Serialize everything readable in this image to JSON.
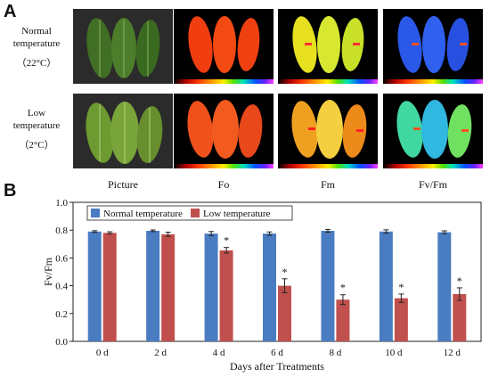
{
  "panel_a": {
    "letter": "A",
    "rows": [
      {
        "label_lines": [
          "Normal",
          "temperature",
          "（22°C）"
        ]
      },
      {
        "label_lines": [
          "Low",
          "temperature",
          "（2°C）"
        ]
      }
    ],
    "columns": [
      "Picture",
      "Fo",
      "Fm",
      "Fv/Fm"
    ]
  },
  "panel_b": {
    "letter": "B"
  },
  "colors": {
    "normal": "#4a7cc2",
    "low": "#c0504d"
  },
  "chart_data": {
    "type": "bar",
    "categories": [
      "0 d",
      "2 d",
      "4 d",
      "6 d",
      "8 d",
      "10 d",
      "12 d"
    ],
    "series": [
      {
        "name": "Normal temperature",
        "values": [
          0.79,
          0.795,
          0.775,
          0.775,
          0.795,
          0.79,
          0.785
        ],
        "errors": [
          0.006,
          0.006,
          0.015,
          0.012,
          0.01,
          0.012,
          0.01
        ]
      },
      {
        "name": "Low temperature",
        "values": [
          0.78,
          0.77,
          0.655,
          0.4,
          0.3,
          0.31,
          0.34
        ],
        "errors": [
          0.008,
          0.015,
          0.02,
          0.05,
          0.035,
          0.03,
          0.045
        ],
        "significance": [
          "",
          "",
          "*",
          "*",
          "*",
          "*",
          "*"
        ]
      }
    ],
    "xlabel": "Days after Treatments",
    "ylabel": "Fv/Fm",
    "ylim": [
      0.0,
      1.0
    ],
    "yticks": [
      "0.0",
      "0.2",
      "0.4",
      "0.6",
      "0.8",
      "1.0"
    ],
    "legend": "top-left",
    "grid": false
  }
}
